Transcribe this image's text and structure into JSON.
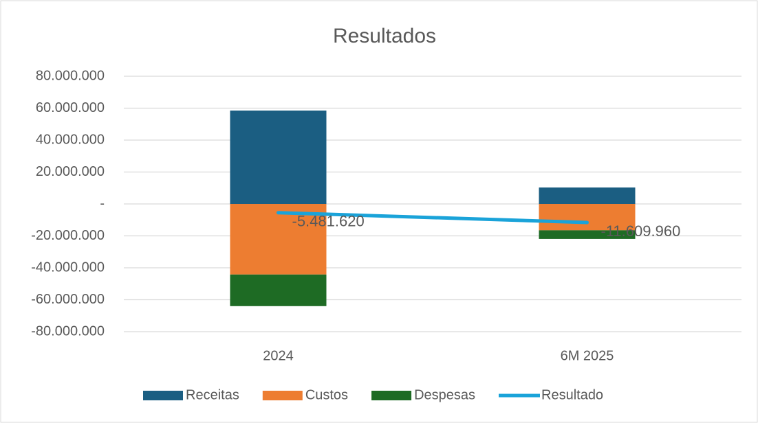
{
  "chart_data": {
    "type": "bar",
    "title": "Resultados",
    "categories": [
      "2024",
      "6M 2025"
    ],
    "series": [
      {
        "name": "Receitas",
        "color": "#1b5e82",
        "values": [
          58500000,
          10300000
        ]
      },
      {
        "name": "Custos",
        "color": "#ed7d31",
        "values": [
          -44200000,
          -16500000
        ]
      },
      {
        "name": "Despesas",
        "color": "#1e6b24",
        "values": [
          -19800000,
          -5400000
        ]
      },
      {
        "name": "Resultado",
        "type": "line",
        "color": "#1aa3d9",
        "values": [
          -5481620,
          -11609960
        ],
        "value_labels": [
          "-5.481.620",
          "-11.609.960"
        ]
      }
    ],
    "ylim": [
      -80000000,
      80000000
    ],
    "yticks": [
      {
        "value": -80000000,
        "label": "-80.000.000"
      },
      {
        "value": -60000000,
        "label": "-60.000.000"
      },
      {
        "value": -40000000,
        "label": "-40.000.000"
      },
      {
        "value": -20000000,
        "label": "-20.000.000"
      },
      {
        "value": 0,
        "label": "-"
      },
      {
        "value": 20000000,
        "label": "20.000.000"
      },
      {
        "value": 40000000,
        "label": "40.000.000"
      },
      {
        "value": 60000000,
        "label": "60.000.000"
      },
      {
        "value": 80000000,
        "label": "80.000.000"
      }
    ],
    "grid": true,
    "legend": "bottom"
  }
}
